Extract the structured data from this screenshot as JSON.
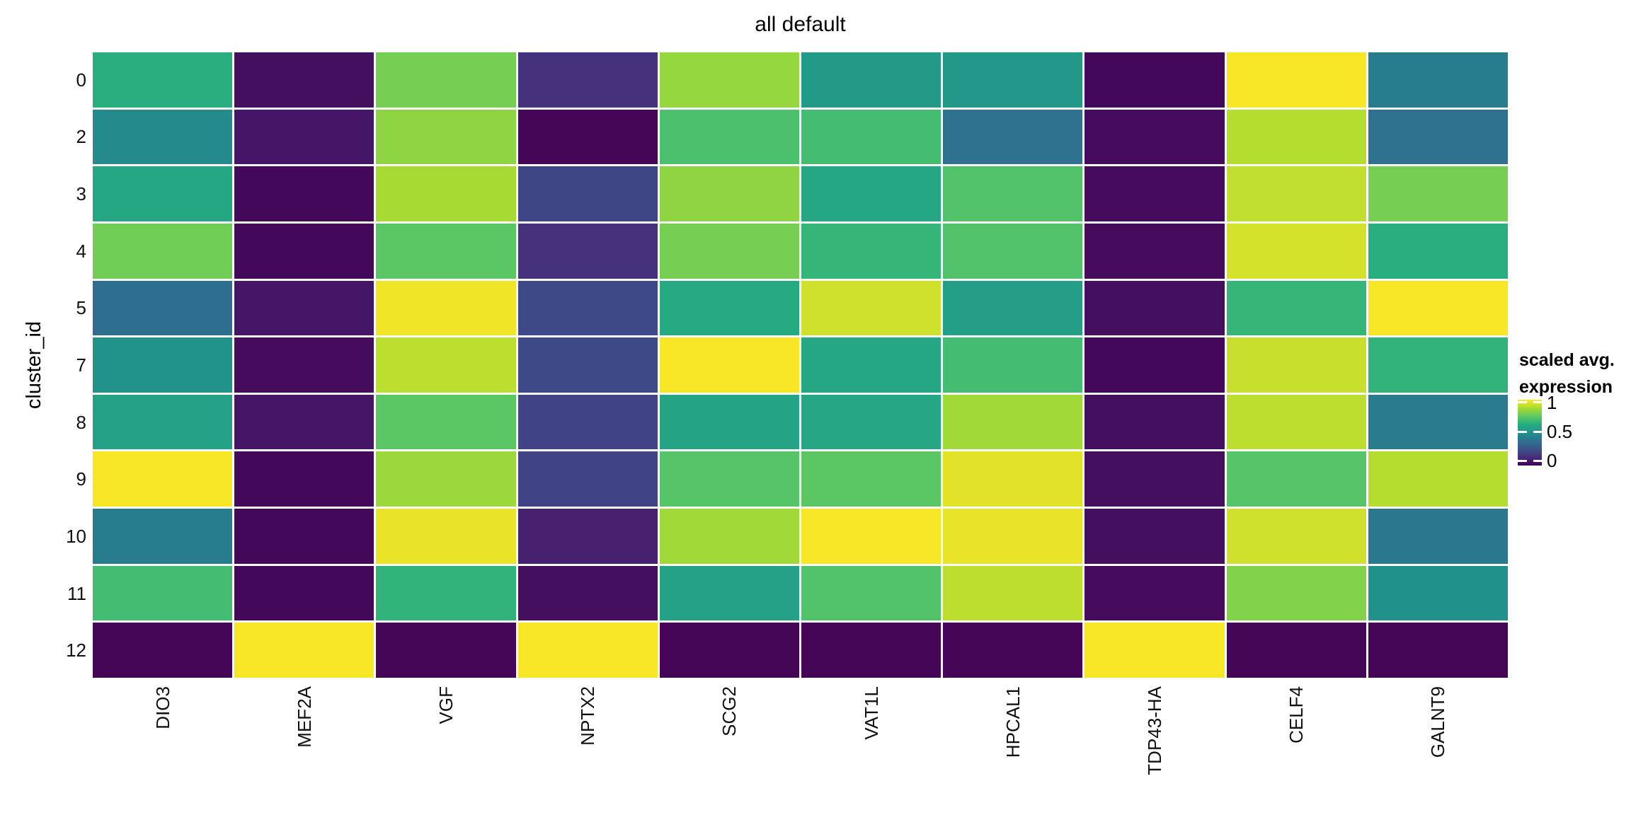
{
  "title": "all default",
  "y_axis": {
    "label": "cluster_id",
    "ticks": [
      "0",
      "2",
      "3",
      "4",
      "5",
      "7",
      "8",
      "9",
      "10",
      "11",
      "12"
    ]
  },
  "x_axis": {
    "ticks": [
      "DIO3",
      "MEF2A",
      "VGF",
      "NPTX2",
      "SCG2",
      "VAT1L",
      "HPCAL1",
      "TDP43-HA",
      "CELF4",
      "GALNT9"
    ]
  },
  "legend": {
    "title_line1": "scaled avg.",
    "title_line2": "expression",
    "ticks": [
      "1",
      "0.5",
      "0"
    ],
    "tick_values": [
      1,
      0.5,
      0
    ]
  },
  "colors": {
    "background": "#ffffff",
    "text": "#000000",
    "cell_gap": "#ffffff",
    "viridis_stops": [
      "#440154",
      "#472d7b",
      "#3b528b",
      "#2c728e",
      "#21918c",
      "#27ad81",
      "#5ec962",
      "#aadc32",
      "#fde725"
    ]
  },
  "chart_data": {
    "type": "heatmap",
    "title": "all default",
    "ylabel": "cluster_id",
    "colormap": "viridis",
    "legend_title": "scaled avg. expression",
    "legend_range": [
      0,
      1
    ],
    "rows": [
      "0",
      "2",
      "3",
      "4",
      "5",
      "7",
      "8",
      "9",
      "10",
      "11",
      "12"
    ],
    "columns": [
      "DIO3",
      "MEF2A",
      "VGF",
      "NPTX2",
      "SCG2",
      "VAT1L",
      "HPCAL1",
      "TDP43-HA",
      "CELF4",
      "GALNT9"
    ],
    "values": [
      [
        0.63,
        0.04,
        0.79,
        0.14,
        0.84,
        0.54,
        0.53,
        0.02,
        0.99,
        0.42
      ],
      [
        0.47,
        0.06,
        0.83,
        0.01,
        0.71,
        0.69,
        0.37,
        0.03,
        0.89,
        0.37
      ],
      [
        0.6,
        0.02,
        0.87,
        0.21,
        0.83,
        0.6,
        0.72,
        0.03,
        0.91,
        0.79
      ],
      [
        0.78,
        0.02,
        0.74,
        0.14,
        0.79,
        0.66,
        0.72,
        0.03,
        0.94,
        0.63
      ],
      [
        0.36,
        0.06,
        0.98,
        0.22,
        0.61,
        0.93,
        0.56,
        0.04,
        0.66,
        0.99
      ],
      [
        0.51,
        0.03,
        0.9,
        0.22,
        0.99,
        0.6,
        0.69,
        0.02,
        0.92,
        0.65
      ],
      [
        0.57,
        0.06,
        0.74,
        0.2,
        0.58,
        0.59,
        0.86,
        0.04,
        0.9,
        0.41
      ],
      [
        0.99,
        0.02,
        0.85,
        0.2,
        0.73,
        0.74,
        0.96,
        0.04,
        0.73,
        0.89
      ],
      [
        0.42,
        0.02,
        0.97,
        0.09,
        0.86,
        0.99,
        0.97,
        0.04,
        0.93,
        0.4
      ],
      [
        0.69,
        0.02,
        0.65,
        0.04,
        0.57,
        0.72,
        0.9,
        0.03,
        0.81,
        0.5
      ],
      [
        0.01,
        0.99,
        0.01,
        0.99,
        0.01,
        0.01,
        0.01,
        0.99,
        0.01,
        0.01
      ]
    ]
  }
}
